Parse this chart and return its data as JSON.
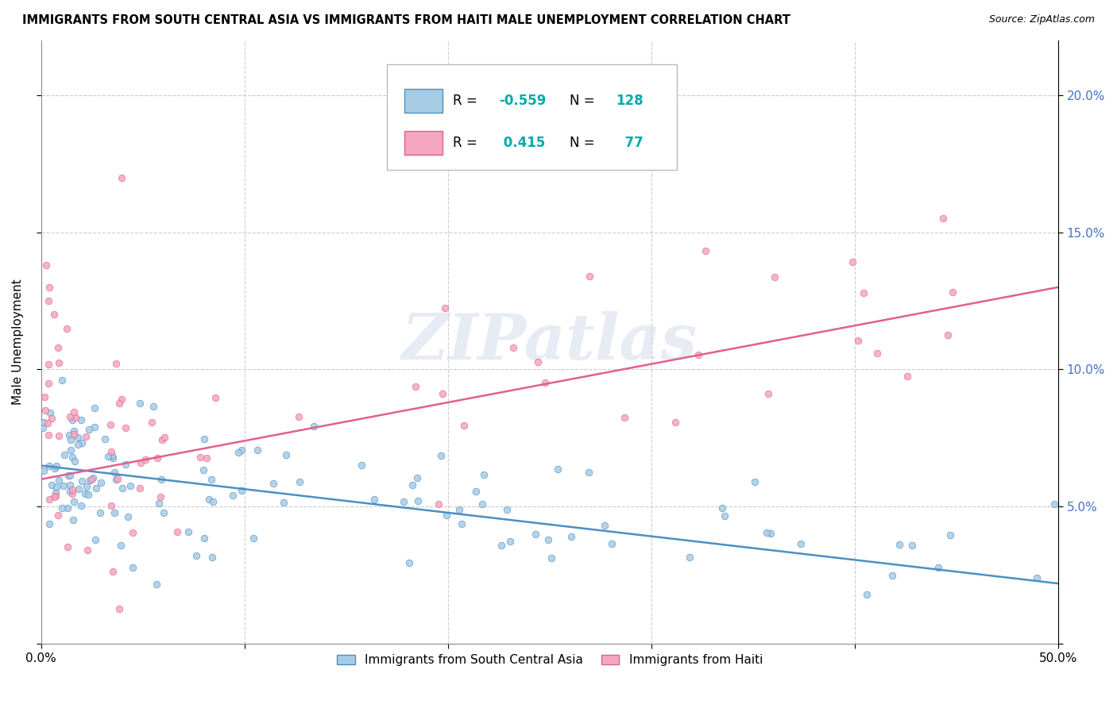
{
  "title": "IMMIGRANTS FROM SOUTH CENTRAL ASIA VS IMMIGRANTS FROM HAITI MALE UNEMPLOYMENT CORRELATION CHART",
  "source": "Source: ZipAtlas.com",
  "ylabel": "Male Unemployment",
  "ytick_values": [
    0.0,
    0.05,
    0.1,
    0.15,
    0.2
  ],
  "ytick_labels_right": [
    "",
    "5.0%",
    "10.0%",
    "15.0%",
    "20.0%"
  ],
  "xlim": [
    0.0,
    0.5
  ],
  "ylim": [
    0.0,
    0.22
  ],
  "blue_R": -0.559,
  "blue_N": 128,
  "pink_R": 0.415,
  "pink_N": 77,
  "blue_color": "#a8cce4",
  "pink_color": "#f4a7bf",
  "blue_line_color": "#4a90c4",
  "pink_line_color": "#e06090",
  "watermark": "ZIPatlas",
  "legend_label_blue": "Immigrants from South Central Asia",
  "legend_label_pink": "Immigrants from Haiti",
  "blue_slope": -0.086,
  "blue_intercept": 0.065,
  "pink_slope": 0.14,
  "pink_intercept": 0.06,
  "background_color": "#ffffff",
  "grid_color": "#cccccc",
  "rn_color": "#00aaaa",
  "xticks": [
    0.0,
    0.1,
    0.2,
    0.3,
    0.4,
    0.5
  ]
}
